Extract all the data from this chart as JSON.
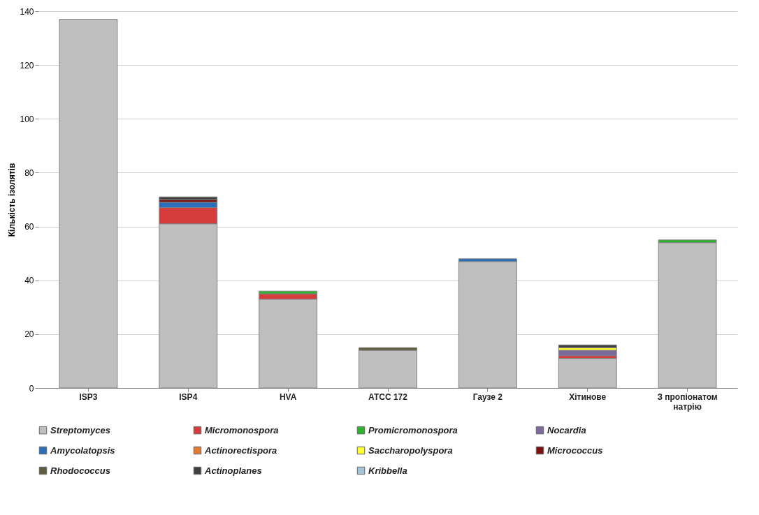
{
  "chart_data": {
    "type": "bar",
    "stacked": true,
    "ylabel": "Кількість ізолятів",
    "categories": [
      "ISP3",
      "ISP4",
      "HVA",
      "ATCC 172",
      "Гаузе 2",
      "Хітинове",
      "З пропіонатом натрію"
    ],
    "ylim": [
      0,
      140
    ],
    "yticks": [
      0,
      20,
      40,
      60,
      80,
      100,
      120,
      140
    ],
    "grid": "y",
    "legend": "bottom",
    "series": [
      {
        "name": "Streptomyces",
        "color": "#bfbfbf",
        "values": [
          137,
          61,
          33,
          14,
          47,
          11,
          54
        ]
      },
      {
        "name": "Micromonospora",
        "color": "#d63c3c",
        "values": [
          null,
          6,
          2,
          null,
          null,
          1,
          null
        ]
      },
      {
        "name": "Promicromonospora",
        "color": "#2cb52c",
        "values": [
          null,
          null,
          1,
          null,
          null,
          null,
          1
        ]
      },
      {
        "name": "Nocardia",
        "color": "#7a6a9e",
        "values": [
          null,
          null,
          null,
          null,
          null,
          2,
          null
        ]
      },
      {
        "name": "Amycolatopsis",
        "color": "#2a6fbb",
        "values": [
          null,
          2,
          null,
          null,
          1,
          null,
          null
        ]
      },
      {
        "name": "Actinorectispora",
        "color": "#e07b30",
        "values": [
          null,
          null,
          null,
          null,
          null,
          null,
          null
        ]
      },
      {
        "name": "Saccharopolyspora",
        "color": "#ffff33",
        "values": [
          null,
          null,
          null,
          null,
          null,
          1,
          null
        ]
      },
      {
        "name": "Micrococcus",
        "color": "#7b1010",
        "values": [
          null,
          1,
          null,
          null,
          null,
          null,
          null
        ]
      },
      {
        "name": "Rhodococcus",
        "color": "#5f5f40",
        "values": [
          null,
          null,
          null,
          1,
          null,
          null,
          null
        ]
      },
      {
        "name": "Actinoplanes",
        "color": "#404040",
        "values": [
          null,
          1,
          null,
          null,
          null,
          1,
          null
        ]
      },
      {
        "name": "Kribbella",
        "color": "#a6c4d8",
        "values": [
          null,
          null,
          null,
          null,
          null,
          null,
          null
        ]
      }
    ]
  }
}
